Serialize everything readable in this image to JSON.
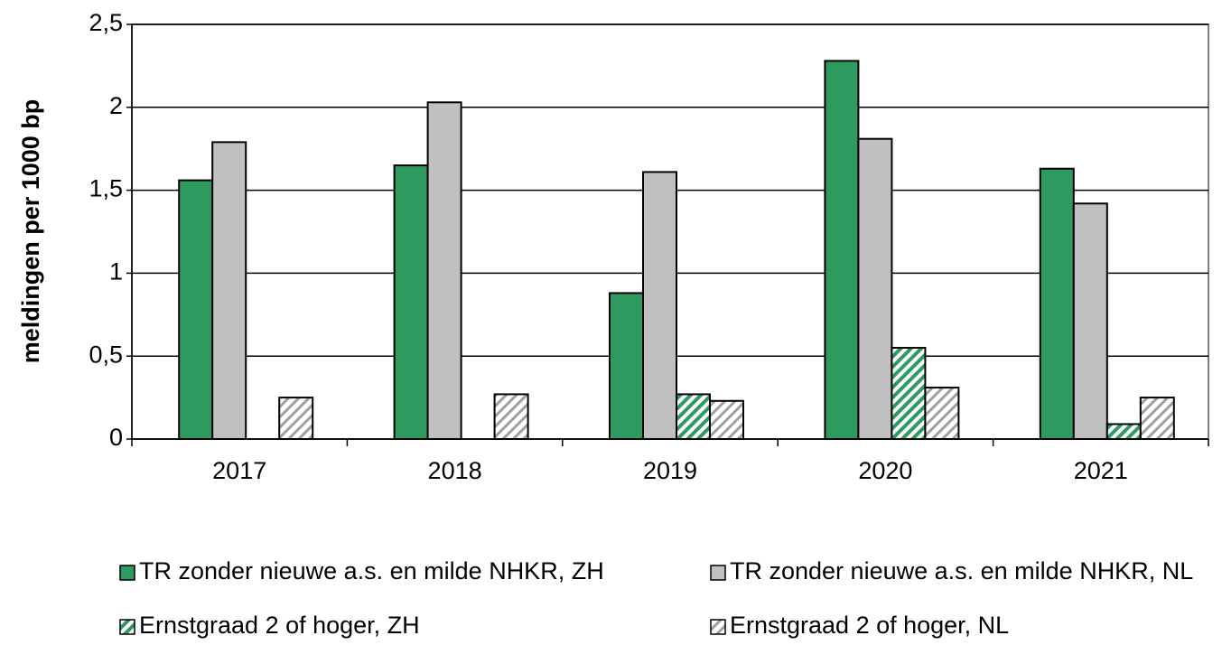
{
  "chart_data": {
    "type": "bar",
    "y_label": "meldingen per 1000 bp",
    "categories": [
      "2017",
      "2018",
      "2019",
      "2020",
      "2021"
    ],
    "series": [
      {
        "name": "TR zonder nieuwe a.s. en milde NHKR, ZH",
        "color": "#2e9a5f",
        "values": [
          1.56,
          1.65,
          0.88,
          2.28,
          1.63
        ]
      },
      {
        "name": "TR zonder nieuwe a.s. en milde NHKR, NL",
        "color": "#c0c0c0",
        "values": [
          1.79,
          2.03,
          1.61,
          1.81,
          1.42
        ]
      },
      {
        "name": "Ernstgraad 2 of hoger, ZH",
        "color": "#2e9a5f",
        "pattern": "hatch",
        "values": [
          null,
          null,
          0.27,
          0.55,
          0.09
        ]
      },
      {
        "name": "Ernstgraad 2 of hoger, NL",
        "color": "#a0a0a0",
        "pattern": "hatch",
        "values": [
          0.25,
          0.27,
          0.23,
          0.31,
          0.25
        ]
      }
    ],
    "ylim": [
      0,
      2.5
    ],
    "yticks": [
      0,
      {
        "value": 0.5,
        "label": "0,5"
      },
      1,
      {
        "value": 1.5,
        "label": "1,5"
      },
      2,
      {
        "value": 2.5,
        "label": "2,5"
      }
    ],
    "grid": true
  }
}
